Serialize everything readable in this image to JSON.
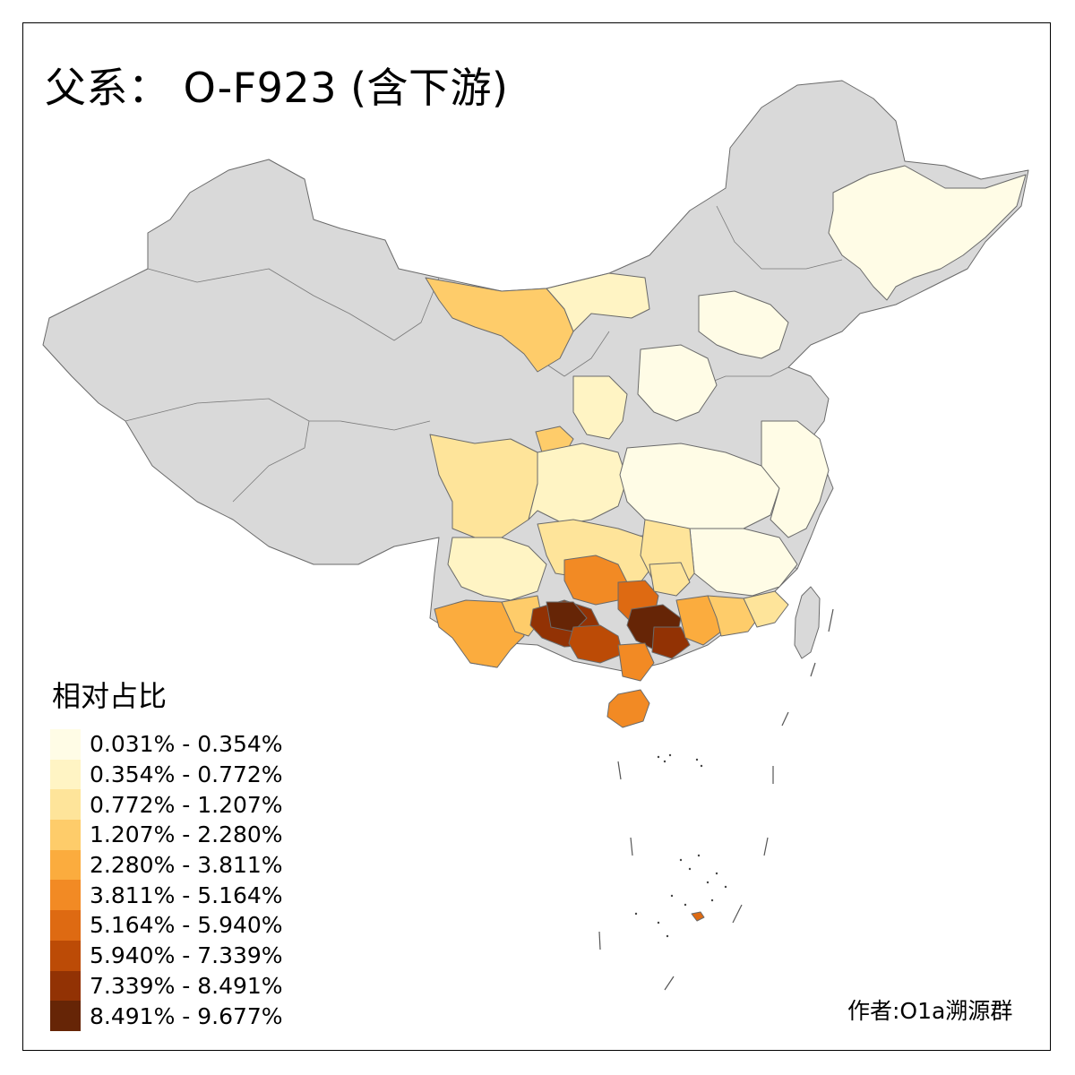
{
  "title": "父系： O-F923 (含下游)",
  "legend": {
    "title": "相对占比",
    "items": [
      {
        "label": "0.031% - 0.354%",
        "color": "#FFFCE6"
      },
      {
        "label": "0.354% - 0.772%",
        "color": "#FFF4C4"
      },
      {
        "label": "0.772% - 1.207%",
        "color": "#FEE49A"
      },
      {
        "label": "1.207% - 2.280%",
        "color": "#FECC6A"
      },
      {
        "label": "2.280% - 3.811%",
        "color": "#FBAC3E"
      },
      {
        "label": "3.811% - 5.164%",
        "color": "#F28A24"
      },
      {
        "label": "5.164% - 5.940%",
        "color": "#DE6A12"
      },
      {
        "label": "5.940% - 7.339%",
        "color": "#BC4B06"
      },
      {
        "label": "7.339% - 8.491%",
        "color": "#923204"
      },
      {
        "label": "8.491% - 9.677%",
        "color": "#662506"
      }
    ]
  },
  "author": "作者:O1a溯源群",
  "colors": {
    "no_data": "#D9D9D9",
    "border": "#666666"
  }
}
